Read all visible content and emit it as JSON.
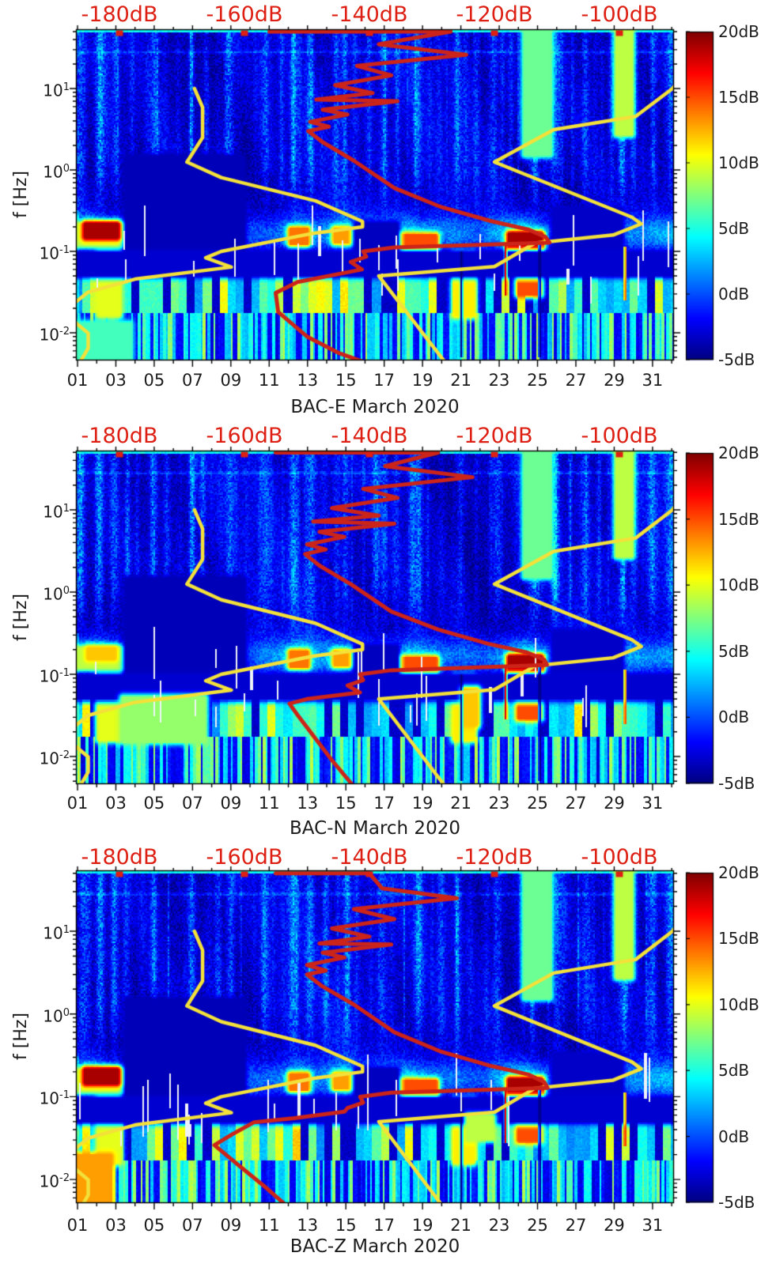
{
  "figure": {
    "background": "#ffffff"
  },
  "colors": {
    "red_label": "#dd2013",
    "red_curve": "#cc2418",
    "yellow_curve": "#f3e13a",
    "axis": "#000000",
    "text": "#1c1c1c",
    "white_gap_line": "#eef2f6"
  },
  "top_axis": {
    "labels": [
      "-180dB",
      "-160dB",
      "-140dB",
      "-120dB",
      "-100dB"
    ],
    "ticks_db": [
      -180,
      -160,
      -140,
      -120,
      -100
    ]
  },
  "x_axis": {
    "tick_labels": [
      "01",
      "03",
      "05",
      "07",
      "09",
      "11",
      "13",
      "15",
      "17",
      "19",
      "21",
      "23",
      "25",
      "27",
      "29",
      "31"
    ],
    "tick_days": [
      1,
      3,
      5,
      7,
      9,
      11,
      13,
      15,
      17,
      19,
      21,
      23,
      25,
      27,
      29,
      31
    ]
  },
  "y_axis": {
    "label": "f [Hz]",
    "ticks": [
      {
        "base": "10",
        "exp": "1"
      },
      {
        "base": "10",
        "exp": "0"
      },
      {
        "base": "10",
        "exp": "-1"
      },
      {
        "base": "10",
        "exp": "-2"
      }
    ]
  },
  "colorbar": {
    "labels": [
      "20dB",
      "15dB",
      "10dB",
      "5dB",
      "0dB",
      "-5dB"
    ],
    "values": [
      20,
      15,
      10,
      5,
      0,
      -5
    ],
    "vmin": -5,
    "vmax": 20
  },
  "panels": [
    {
      "title": "BAC-E March 2020",
      "station": "BAC-E"
    },
    {
      "title": "BAC-N March 2020",
      "station": "BAC-N"
    },
    {
      "title": "BAC-Z March 2020",
      "station": "BAC-Z"
    }
  ],
  "chart_data": {
    "type": "heatmap",
    "subtype": "seismic-noise-spectrogram",
    "month": "March 2020",
    "x_range_days": [
      0.92,
      32.1
    ],
    "f_range_hz": [
      0.005,
      50
    ],
    "color_range_db": [
      -5,
      20
    ],
    "top_axis_range_db": [
      -187,
      -91.3
    ],
    "noise_models": {
      "nlnm_period_db": [
        [
          0.1,
          -168
        ],
        [
          0.17,
          -166.7
        ],
        [
          0.4,
          -166.7
        ],
        [
          0.8,
          -169.2
        ],
        [
          1.24,
          -163.7
        ],
        [
          2.4,
          -148.6
        ],
        [
          4.3,
          -141.1
        ],
        [
          5,
          -141.1
        ],
        [
          6,
          -149
        ],
        [
          10,
          -163.7
        ],
        [
          12,
          -166.2
        ],
        [
          15.6,
          -162.1
        ],
        [
          21.9,
          -177.5
        ],
        [
          31.6,
          -185
        ],
        [
          45,
          -187.5
        ],
        [
          70,
          -187.5
        ],
        [
          101,
          -185
        ],
        [
          154,
          -185
        ],
        [
          328,
          -187.5
        ]
      ],
      "nhnm_period_db": [
        [
          0.06,
          -89.5
        ],
        [
          0.1,
          -91.5
        ],
        [
          0.22,
          -97.4
        ],
        [
          0.32,
          -110.5
        ],
        [
          0.8,
          -120
        ],
        [
          3.8,
          -98
        ],
        [
          4.6,
          -96.5
        ],
        [
          6.3,
          -101
        ],
        [
          7.9,
          -113.5
        ],
        [
          15.4,
          -120
        ],
        [
          20,
          -138.5
        ],
        [
          354.8,
          -126
        ]
      ]
    },
    "microseism_intensity": [
      [
        0.9,
        7
      ],
      [
        1.8,
        8.5
      ],
      [
        3.2,
        5
      ],
      [
        4.2,
        2
      ],
      [
        6,
        1.2
      ],
      [
        8.5,
        1.8
      ],
      [
        10.3,
        3.5
      ],
      [
        11.8,
        5
      ],
      [
        12.6,
        6.5
      ],
      [
        13.6,
        4
      ],
      [
        14.8,
        6
      ],
      [
        15.8,
        3.5
      ],
      [
        17,
        5.5
      ],
      [
        18.4,
        6.5
      ],
      [
        19.6,
        5
      ],
      [
        20.6,
        4
      ],
      [
        22,
        3.2
      ],
      [
        23.3,
        6
      ],
      [
        24.4,
        8.5
      ],
      [
        25.3,
        5
      ],
      [
        26.5,
        3
      ],
      [
        27.8,
        3.2
      ],
      [
        29,
        4.5
      ],
      [
        30.2,
        4.5
      ],
      [
        31.2,
        5
      ],
      [
        32.1,
        5.5
      ]
    ],
    "streak_boost": [
      [
        1.2,
        4
      ],
      [
        2.2,
        5.5
      ],
      [
        3,
        3
      ],
      [
        5,
        3.5
      ],
      [
        7,
        4
      ],
      [
        9,
        3.5
      ],
      [
        10.8,
        3
      ],
      [
        12.3,
        5
      ],
      [
        13.2,
        4
      ],
      [
        15,
        3.5
      ],
      [
        16.9,
        3
      ],
      [
        18.8,
        4
      ],
      [
        20.9,
        2.5
      ],
      [
        22.8,
        3.5
      ],
      [
        24.8,
        6.5
      ],
      [
        26,
        3.5
      ],
      [
        27.5,
        3
      ],
      [
        29.5,
        6
      ],
      [
        31,
        4
      ],
      [
        31.9,
        4.5
      ]
    ],
    "shared_features": [
      {
        "d0": 0.9,
        "d1": 5.3,
        "l0": -0.92,
        "l1": -0.7,
        "v": 9
      },
      {
        "d0": 12.15,
        "d1": 12.95,
        "l0": -0.9,
        "l1": -0.74,
        "v": 14
      },
      {
        "d0": 14.45,
        "d1": 15.15,
        "l0": -0.88,
        "l1": -0.74,
        "v": 13
      },
      {
        "d0": 17.55,
        "d1": 19.65,
        "l0": -0.98,
        "l1": -0.82,
        "v": 15
      },
      {
        "d0": 23.55,
        "d1": 25.15,
        "l0": -1.02,
        "l1": -0.8,
        "v": 19
      },
      {
        "d0": 24.05,
        "d1": 25.05,
        "l0": -1.52,
        "l1": -1.26,
        "v": 15
      },
      {
        "d0": 2.15,
        "d1": 3.15,
        "l0": -1.78,
        "l1": -1.02,
        "v": 10
      },
      {
        "d0": 20.7,
        "d1": 21.6,
        "l0": -1.78,
        "l1": -1.05,
        "v": 11
      },
      {
        "d0": 24.35,
        "d1": 25.6,
        "l0": 0.2,
        "l1": 1.73,
        "v": 7
      },
      {
        "d0": 29.15,
        "d1": 29.85,
        "l0": 0.45,
        "l1": 1.73,
        "v": 9
      },
      {
        "d0": 3.6,
        "d1": 9.6,
        "l0": -1.0,
        "l1": 0.15,
        "v": -3.6
      },
      {
        "d0": 15.6,
        "d1": 17.6,
        "l0": -1.0,
        "l1": -0.68,
        "v": -3.4
      },
      {
        "d0": 25.9,
        "d1": 29.3,
        "l0": -1.0,
        "l1": -0.5,
        "v": -3.2
      },
      {
        "d0": 0.9,
        "d1": 32.1,
        "l0": -1.28,
        "l1": -1.04,
        "v": -3.0
      }
    ],
    "shared_vlines": [
      {
        "d": 23.33,
        "l0": -1.55,
        "l1": -0.9,
        "v": 18,
        "w": 0.07
      },
      {
        "d": 29.55,
        "l0": -1.6,
        "l1": -0.95,
        "v": 17,
        "w": 0.07
      },
      {
        "d": 25.1,
        "l0": -2.3,
        "l1": -0.9,
        "v": -5,
        "w": 0.08
      },
      {
        "d": 21.02,
        "l0": -2.3,
        "l1": -1.0,
        "v": -5,
        "w": 0.07
      }
    ],
    "panels": [
      {
        "station": "BAC-E",
        "seed": 101,
        "median_psd_db_f": [
          [
            -156,
            50
          ],
          [
            -127,
            50
          ],
          [
            -138.5,
            35
          ],
          [
            -124.5,
            26
          ],
          [
            -142,
            19
          ],
          [
            -136.5,
            14.5
          ],
          [
            -145.5,
            11
          ],
          [
            -139.5,
            8.8
          ],
          [
            -148.5,
            7.3
          ],
          [
            -135.5,
            7.0
          ],
          [
            -147.5,
            5.5
          ],
          [
            -143.5,
            4.8
          ],
          [
            -149.5,
            3.9
          ],
          [
            -146.5,
            3.4
          ],
          [
            -149.8,
            3.0
          ],
          [
            -147.5,
            2.2
          ],
          [
            -142.5,
            1.3
          ],
          [
            -136,
            0.6
          ],
          [
            -128.5,
            0.35
          ],
          [
            -120.5,
            0.235
          ],
          [
            -114.5,
            0.185
          ],
          [
            -111.8,
            0.15
          ],
          [
            -111.2,
            0.128
          ],
          [
            -136,
            0.112
          ],
          [
            -141,
            0.1
          ],
          [
            -140.5,
            0.086
          ],
          [
            -143,
            0.074
          ],
          [
            -141.2,
            0.06
          ],
          [
            -151.5,
            0.042
          ],
          [
            -155,
            0.031
          ],
          [
            -154.6,
            0.018
          ],
          [
            -150,
            0.009
          ],
          [
            -144.8,
            0.0056
          ],
          [
            -141,
            0.0044
          ]
        ],
        "features": [
          {
            "d0": 1.45,
            "d1": 3.05,
            "l0": -0.82,
            "l1": -0.68,
            "v": 19
          },
          {
            "d0": 0.9,
            "d1": 3.7,
            "l0": -2.33,
            "l1": -1.9,
            "v": 6
          }
        ]
      },
      {
        "station": "BAC-N",
        "seed": 202,
        "median_psd_db_f": [
          [
            -155,
            50
          ],
          [
            -129,
            50
          ],
          [
            -137.5,
            34
          ],
          [
            -123.5,
            25
          ],
          [
            -141,
            18
          ],
          [
            -135.5,
            14
          ],
          [
            -146,
            10.5
          ],
          [
            -138.5,
            8.5
          ],
          [
            -149,
            7.2
          ],
          [
            -136,
            6.8
          ],
          [
            -148,
            5.4
          ],
          [
            -144,
            4.7
          ],
          [
            -150,
            3.8
          ],
          [
            -147,
            3.3
          ],
          [
            -150.3,
            2.9
          ],
          [
            -148,
            2.1
          ],
          [
            -143,
            1.25
          ],
          [
            -136.5,
            0.58
          ],
          [
            -129,
            0.35
          ],
          [
            -121,
            0.235
          ],
          [
            -114.8,
            0.185
          ],
          [
            -112,
            0.15
          ],
          [
            -111.6,
            0.13
          ],
          [
            -136.5,
            0.112
          ],
          [
            -141.5,
            0.1
          ],
          [
            -141,
            0.085
          ],
          [
            -143.5,
            0.073
          ],
          [
            -141.5,
            0.06
          ],
          [
            -150,
            0.05
          ],
          [
            -152.8,
            0.044
          ],
          [
            -151.5,
            0.032
          ],
          [
            -149,
            0.018
          ],
          [
            -146,
            0.009
          ],
          [
            -142.8,
            0.0046
          ]
        ],
        "features": [
          {
            "d0": 1.6,
            "d1": 2.9,
            "l0": -0.8,
            "l1": -0.7,
            "v": 12
          },
          {
            "d0": 3.4,
            "d1": 7.6,
            "l0": -1.8,
            "l1": -1.3,
            "v": 8
          },
          {
            "d0": 21.2,
            "d1": 21.8,
            "l0": -1.6,
            "l1": -1.2,
            "v": 12
          }
        ]
      },
      {
        "station": "BAC-Z",
        "seed": 303,
        "median_psd_db_f": [
          [
            -155,
            50
          ],
          [
            -140,
            50
          ],
          [
            -138,
            33
          ],
          [
            -126,
            25
          ],
          [
            -142.5,
            18.5
          ],
          [
            -136,
            14
          ],
          [
            -146,
            10.8
          ],
          [
            -140,
            8.6
          ],
          [
            -148,
            7.1
          ],
          [
            -136.5,
            6.9
          ],
          [
            -147.5,
            5.5
          ],
          [
            -144,
            4.8
          ],
          [
            -150,
            3.9
          ],
          [
            -147,
            3.35
          ],
          [
            -150,
            3.0
          ],
          [
            -147.5,
            2.15
          ],
          [
            -142.5,
            1.3
          ],
          [
            -136,
            0.6
          ],
          [
            -128.5,
            0.35
          ],
          [
            -120.5,
            0.235
          ],
          [
            -114.5,
            0.185
          ],
          [
            -112,
            0.15
          ],
          [
            -111.5,
            0.128
          ],
          [
            -136.5,
            0.112
          ],
          [
            -141.5,
            0.1
          ],
          [
            -141,
            0.085
          ],
          [
            -143.5,
            0.073
          ],
          [
            -144,
            0.066
          ],
          [
            -152,
            0.055
          ],
          [
            -158.5,
            0.049
          ],
          [
            -162,
            0.035
          ],
          [
            -164.8,
            0.026
          ],
          [
            -161,
            0.015
          ],
          [
            -157,
            0.0085
          ],
          [
            -153.5,
            0.005
          ]
        ],
        "features": [
          {
            "d0": 1.45,
            "d1": 3.05,
            "l0": -0.82,
            "l1": -0.68,
            "v": 19
          },
          {
            "d0": 0.9,
            "d1": 2.7,
            "l0": -2.33,
            "l1": -1.72,
            "v": 13
          },
          {
            "d0": 21.4,
            "d1": 22.6,
            "l0": -1.5,
            "l1": -1.25,
            "v": 9
          }
        ]
      }
    ]
  }
}
